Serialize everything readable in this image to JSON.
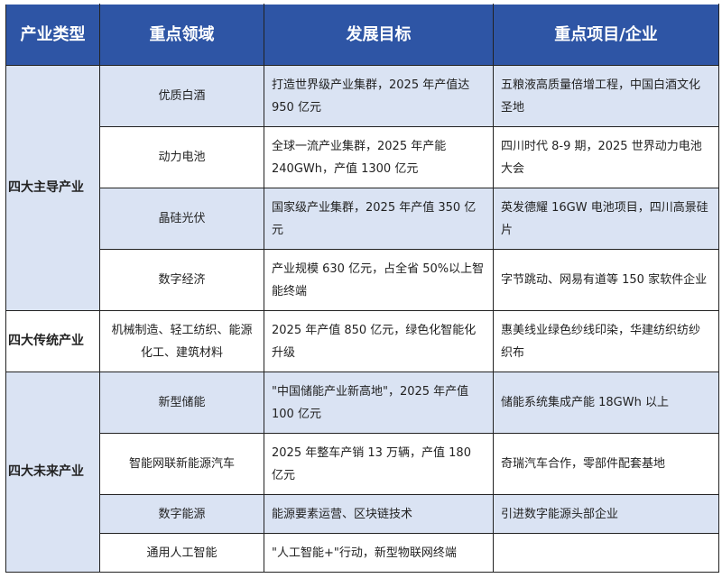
{
  "colors": {
    "header_bg": "#2E55A5",
    "band_light": "#DAE3F3",
    "band_white": "#FFFFFF"
  },
  "headers": [
    "产业类型",
    "重点领域",
    "发展目标",
    "重点项目/企业"
  ],
  "groups": [
    {
      "category": "四大主导产业",
      "rows": [
        {
          "area": "优质白酒",
          "goal": "打造世界级产业集群，2025 年产值达 950 亿元",
          "projects": "五粮液高质量倍增工程，中国白酒文化圣地"
        },
        {
          "area": "动力电池",
          "goal": "全球一流产业集群，2025 年产能 240GWh，产值 1300 亿元",
          "projects": "四川时代 8-9 期，2025 世界动力电池大会"
        },
        {
          "area": "晶硅光伏",
          "goal": "国家级产业集群，2025 年产值 350 亿元",
          "projects": "英发德耀 16GW 电池项目，四川高景硅片"
        },
        {
          "area": "数字经济",
          "goal": "产业规模 630 亿元，占全省 50%以上智能终端",
          "projects": "字节跳动、网易有道等 150 家软件企业"
        }
      ]
    },
    {
      "category": "四大传统产业",
      "rows": [
        {
          "area": "机械制造、轻工纺织、能源化工、建筑材料",
          "goal": "2025 年产值 850 亿元，绿色化智能化升级",
          "projects": "惠美线业绿色纱线印染，华建纺织纺纱织布"
        }
      ]
    },
    {
      "category": "四大未来产业",
      "rows": [
        {
          "area": "新型储能",
          "goal": "\"中国储能产业新高地\"，2025 年产值 100 亿元",
          "projects": "储能系统集成产能 18GWh 以上"
        },
        {
          "area": "智能网联新能源汽车",
          "goal": "2025 年整车产销 13 万辆，产值 180 亿元",
          "projects": "奇瑞汽车合作，零部件配套基地"
        },
        {
          "area": "数字能源",
          "goal": "能源要素运营、区块链技术",
          "projects": "引进数字能源头部企业"
        },
        {
          "area": "通用人工智能",
          "goal": "\"人工智能+\"行动，新型物联网终端",
          "projects": ""
        }
      ]
    }
  ]
}
